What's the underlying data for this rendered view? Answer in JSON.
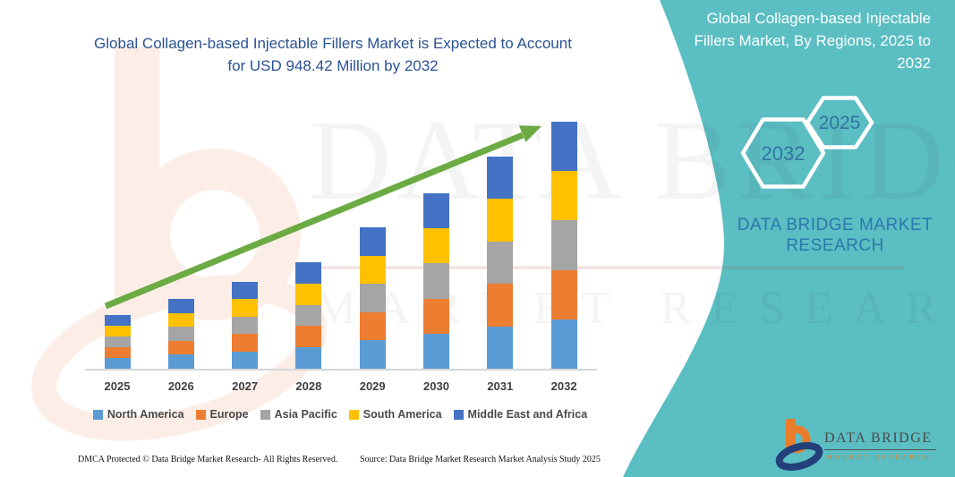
{
  "header": {
    "left_title": "Global Collagen-based Injectable Fillers Market is Expected to Account for USD 948.42 Million by 2032",
    "panel_title": "Global Collagen-based Injectable Fillers Market, By Regions, 2025 to 2032"
  },
  "panel": {
    "teal_color": "#5ABEC3",
    "hexagons": [
      {
        "label": "2032"
      },
      {
        "label": "2025"
      }
    ],
    "brand_caption": "DATA BRIDGE MARKET RESEARCH"
  },
  "chart_data": {
    "type": "bar",
    "stacked": true,
    "title": "Global Collagen-based Injectable Fillers Market, By Regions, 2025 to 2032",
    "unit": "USD Million",
    "categories": [
      "2025",
      "2026",
      "2027",
      "2028",
      "2029",
      "2030",
      "2031",
      "2032"
    ],
    "series": [
      {
        "name": "North America",
        "color": "#5B9BD5",
        "values": [
          41.2,
          53.6,
          66.7,
          81.8,
          108.6,
          134.7,
          162.9,
          189.7
        ]
      },
      {
        "name": "Europe",
        "color": "#ED7D31",
        "values": [
          41.2,
          53.6,
          66.7,
          81.8,
          108.6,
          134.7,
          162.9,
          189.7
        ]
      },
      {
        "name": "Asia Pacific",
        "color": "#A5A5A5",
        "values": [
          41.2,
          53.6,
          66.7,
          81.8,
          108.6,
          134.7,
          162.9,
          189.7
        ]
      },
      {
        "name": "South America",
        "color": "#FFC000",
        "values": [
          41.2,
          53.6,
          66.7,
          81.8,
          108.6,
          134.7,
          162.9,
          189.7
        ]
      },
      {
        "name": "Middle East and Africa",
        "color": "#4472C4",
        "values": [
          41.2,
          53.6,
          66.7,
          81.8,
          108.6,
          134.7,
          162.9,
          189.7
        ]
      }
    ],
    "estimated_totals": [
      206,
      268,
      333,
      409,
      543,
      674,
      814,
      948.42
    ],
    "final_year_value_label": "USD 948.42 Million",
    "ylim": [
      0,
      950
    ],
    "gridlines": false,
    "legend_position": "bottom",
    "trend_arrow": true,
    "trend_arrow_color": "#6CAB44"
  },
  "watermark": {
    "line1": "DATA BRIDGE",
    "line2": "MARKET RESEARCH"
  },
  "footer": {
    "dmca": "DMCA Protected © Data Bridge Market Research-  All Rights Reserved.",
    "source": "Source: Data Bridge Market Research  Market Analysis Study 2025"
  },
  "logo": {
    "name_line": "DATA BRIDGE",
    "sub_line": "MARKET RESEARCH"
  }
}
